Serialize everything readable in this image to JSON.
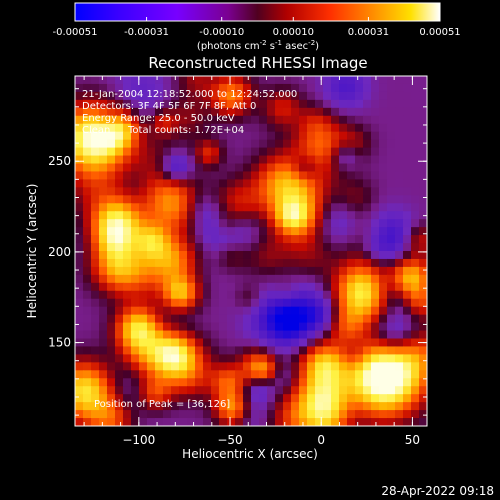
{
  "colorbar": {
    "tick_labels": [
      "-0.00051",
      "-0.00031",
      "-0.00010",
      "0.00010",
      "0.00031",
      "0.00051"
    ],
    "tick_values": [
      -0.00051,
      -0.00031,
      -0.0001,
      0.0001,
      0.00031,
      0.00051
    ],
    "range": [
      -0.00051,
      0.00051
    ],
    "units_main": "(photons cm",
    "units_exp1": "-2",
    "units_mid": " s",
    "units_exp2": "-1",
    "units_tail": " asec",
    "units_exp3": "-2",
    "units_close": ")",
    "colors": [
      "#0000ff",
      "#5a00ff",
      "#8a00c8",
      "#7a0050",
      "#c00000",
      "#ff5000",
      "#ffa000",
      "#ffe000",
      "#ffffe0"
    ]
  },
  "title": "Reconstructed RHESSI Image",
  "overlay": {
    "line1": "21-Jan-2004 12:18:52.000 to 12:24:52.000",
    "line2": "Detectors: 3F 4F 5F 6F 7F 8F, Att 0",
    "line3": "Energy Range: 25.0 - 50.0 keV",
    "line4_a": "Clean",
    "line4_b": "Total counts: 1.72E+04",
    "peak": "Position of Peak = [36,126]"
  },
  "axes": {
    "xlabel": "Heliocentric X (arcsec)",
    "ylabel": "Heliocentric Y (arcsec)",
    "xlim": [
      -135,
      58
    ],
    "ylim": [
      104,
      297
    ],
    "x_ticks": [
      -100,
      -50,
      0,
      50
    ],
    "x_tick_labels": [
      "−100",
      "−50",
      "0",
      "50"
    ],
    "y_ticks": [
      150,
      200,
      250
    ],
    "y_tick_labels": [
      "150",
      "200",
      "250"
    ]
  },
  "footer_date": "28-Apr-2022 09:18"
}
